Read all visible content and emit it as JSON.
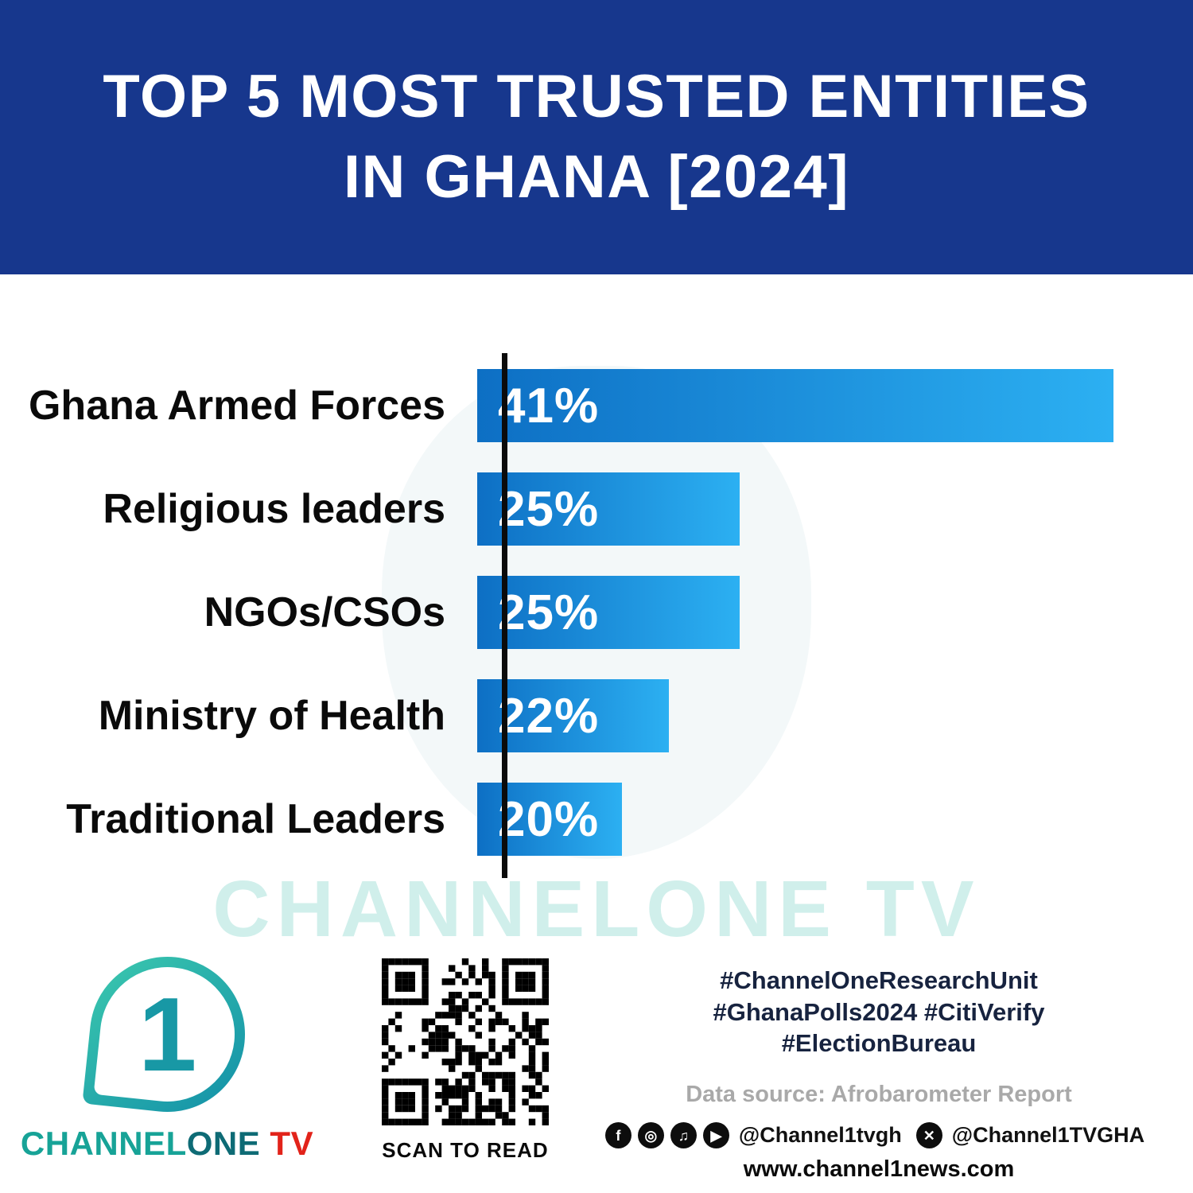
{
  "header": {
    "title_line1": "TOP 5 MOST TRUSTED ENTITIES",
    "title_line2": "IN GHANA [2024]"
  },
  "chart_data": {
    "type": "bar",
    "orientation": "horizontal",
    "title": "Top 5 Most Trusted Entities in Ghana [2024]",
    "categories": [
      "Ghana Armed Forces",
      "Religious leaders",
      "NGOs/CSOs",
      "Ministry of Health",
      "Traditional Leaders"
    ],
    "values": [
      41,
      25,
      25,
      22,
      20
    ],
    "value_labels": [
      "41%",
      "25%",
      "25%",
      "22%",
      "20%"
    ],
    "xlabel": "",
    "ylabel": "",
    "grid": false,
    "legend": false,
    "axis_color": "#0b0b0b",
    "bar_color_start": "#0d6fc4",
    "bar_color_end": "#2cb0f2"
  },
  "watermark": {
    "text": "CHANNELONE TV"
  },
  "footer": {
    "logo": {
      "numeral": "1",
      "brand_channel": "CHANNEL",
      "brand_one": "ONE",
      "brand_tv": " TV"
    },
    "qr_caption": "SCAN TO READ",
    "hashtags": [
      "#ChannelOneResearchUnit",
      "#GhanaPolls2024 #CitiVerify",
      "#ElectionBureau"
    ],
    "data_source": "Data source: Afrobarometer Report",
    "social": {
      "icons": [
        "facebook-icon",
        "instagram-icon",
        "tiktok-icon",
        "youtube-icon"
      ],
      "handle1": "@Channel1tvgh",
      "x_icon": "x-icon",
      "handle2": "@Channel1TVGHA"
    },
    "website": "www.channel1news.com"
  },
  "colors": {
    "header_bg": "#17378d",
    "bar_gradient_start": "#0d6fc4",
    "bar_gradient_end": "#2cb0f2",
    "brand_teal": "#17a397",
    "brand_red": "#e2231a",
    "watermark_teal": "#49c2b3"
  }
}
